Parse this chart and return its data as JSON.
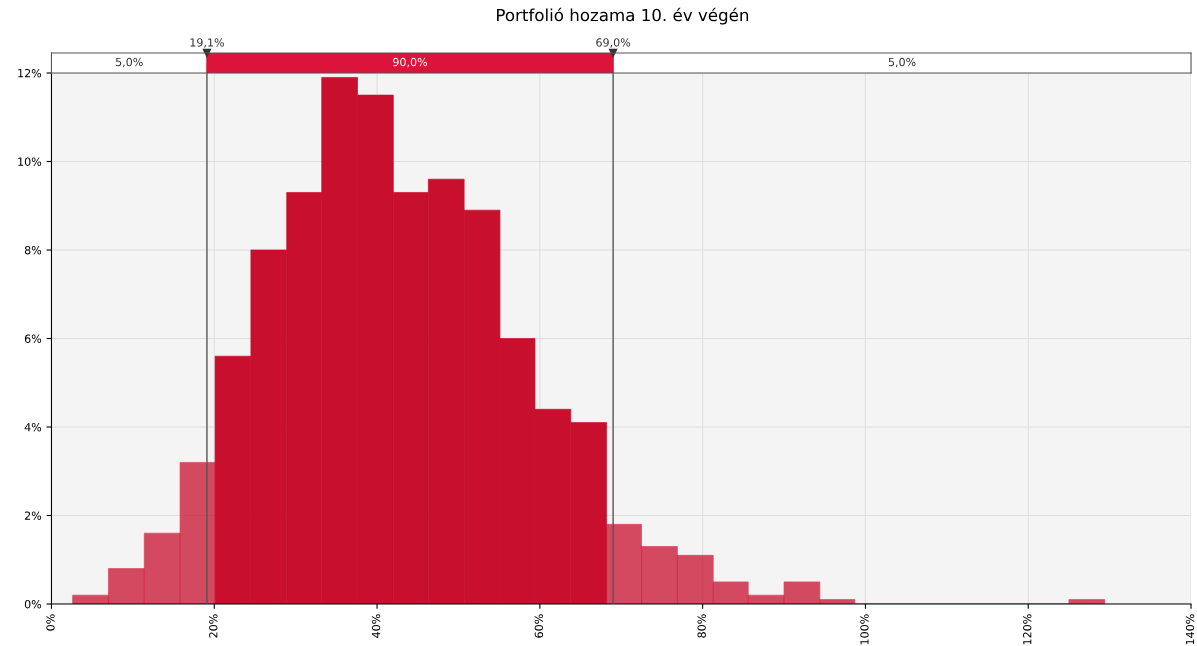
{
  "chart_data": {
    "type": "histogram",
    "title": "Portfolió hozama 10. év végén",
    "bins": [
      2.6,
      7.0,
      11.4,
      15.8,
      20.1,
      24.5,
      28.9,
      33.2,
      37.6,
      42.0,
      46.3,
      50.7,
      55.1,
      59.4,
      63.8,
      68.2,
      72.5,
      76.9,
      81.3,
      85.6,
      90.0,
      94.4,
      98.7,
      103.1,
      107.5,
      111.8,
      116.2,
      120.6,
      125.0,
      129.4
    ],
    "values": [
      0.2,
      0.8,
      1.6,
      3.2,
      5.6,
      8.0,
      9.3,
      11.9,
      11.5,
      9.3,
      9.6,
      8.9,
      6.0,
      4.4,
      4.1,
      1.8,
      1.3,
      1.1,
      0.5,
      0.2,
      0.5,
      0.1,
      0,
      0,
      0,
      0,
      0,
      0,
      0.1
    ],
    "color": "#c8102e",
    "xlim": [
      0,
      140
    ],
    "xticks": [
      {
        "value": 0,
        "label": "0%"
      },
      {
        "value": 20,
        "label": "20%"
      },
      {
        "value": 40,
        "label": "40%"
      },
      {
        "value": 60,
        "label": "60%"
      },
      {
        "value": 80,
        "label": "80%"
      },
      {
        "value": 100,
        "label": "100%"
      },
      {
        "value": 120,
        "label": "120%"
      },
      {
        "value": 140,
        "label": "140%"
      }
    ],
    "ylim": [
      0,
      12
    ],
    "yticks": [
      {
        "value": 0,
        "label": "0%"
      },
      {
        "value": 2,
        "label": "2%"
      },
      {
        "value": 4,
        "label": "4%"
      },
      {
        "value": 6,
        "label": "6%"
      },
      {
        "value": 8,
        "label": "8%"
      },
      {
        "value": 10,
        "label": "10%"
      },
      {
        "value": 12,
        "label": "12%"
      }
    ],
    "ref_lines": [
      {
        "axis": "x",
        "value": 19.1,
        "label": "19,1%",
        "color": "#555555"
      },
      {
        "axis": "x",
        "value": 69.0,
        "label": "69,0%",
        "color": "#555555"
      }
    ],
    "annotations": [
      "5,0%",
      "90,0%",
      "5,0%"
    ],
    "grid": true
  }
}
